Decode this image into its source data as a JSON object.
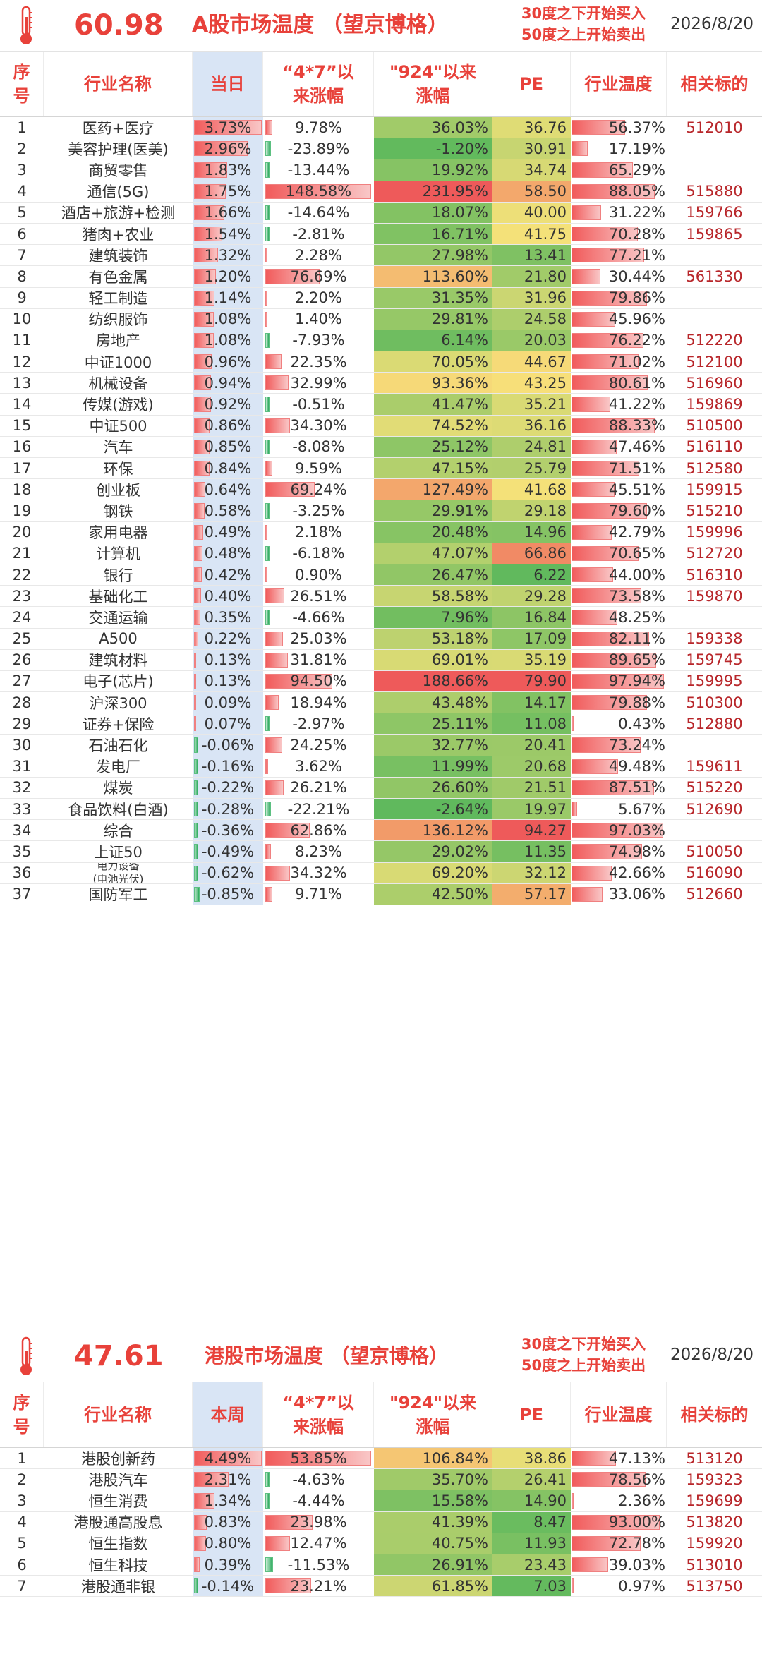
{
  "a_share": {
    "temperature": "60.98",
    "title": "A股市场温度 （望京博格）",
    "rule_line1": "30度之下开始买入",
    "rule_line2": "50度之上开始卖出",
    "date": "2026/8/20",
    "headers": {
      "no_1": "序",
      "no_2": "号",
      "name": "行业名称",
      "day": "当日",
      "a47_1": "“4*7”以",
      "a47_2": "来涨幅",
      "a924_1": "\"924\"以来",
      "a924_2": "涨幅",
      "pe": "PE",
      "ind": "行业温度",
      "code": "相关标的"
    },
    "rows": [
      {
        "no": "1",
        "name": "医药+医疗",
        "day": "3.73%",
        "a47": "9.78%",
        "a924": "36.03%",
        "pe": "36.76",
        "ind": "56.37%",
        "code": "512010"
      },
      {
        "no": "2",
        "name": "美容护理(医美)",
        "day": "2.96%",
        "a47": "-23.89%",
        "a924": "-1.20%",
        "pe": "30.91",
        "ind": "17.19%",
        "code": ""
      },
      {
        "no": "3",
        "name": "商贸零售",
        "day": "1.83%",
        "a47": "-13.44%",
        "a924": "19.92%",
        "pe": "34.74",
        "ind": "65.29%",
        "code": ""
      },
      {
        "no": "4",
        "name": "通信(5G)",
        "day": "1.75%",
        "a47": "148.58%",
        "a924": "231.95%",
        "pe": "58.50",
        "ind": "88.05%",
        "code": "515880"
      },
      {
        "no": "5",
        "name": "酒店+旅游+检测",
        "day": "1.66%",
        "a47": "-14.64%",
        "a924": "18.07%",
        "pe": "40.00",
        "ind": "31.22%",
        "code": "159766"
      },
      {
        "no": "6",
        "name": "猪肉+农业",
        "day": "1.54%",
        "a47": "-2.81%",
        "a924": "16.71%",
        "pe": "41.75",
        "ind": "70.28%",
        "code": "159865"
      },
      {
        "no": "7",
        "name": "建筑装饰",
        "day": "1.32%",
        "a47": "2.28%",
        "a924": "27.98%",
        "pe": "13.41",
        "ind": "77.21%",
        "code": ""
      },
      {
        "no": "8",
        "name": "有色金属",
        "day": "1.20%",
        "a47": "76.69%",
        "a924": "113.60%",
        "pe": "21.80",
        "ind": "30.44%",
        "code": "561330"
      },
      {
        "no": "9",
        "name": "轻工制造",
        "day": "1.14%",
        "a47": "2.20%",
        "a924": "31.35%",
        "pe": "31.96",
        "ind": "79.86%",
        "code": ""
      },
      {
        "no": "10",
        "name": "纺织服饰",
        "day": "1.08%",
        "a47": "1.40%",
        "a924": "29.81%",
        "pe": "24.58",
        "ind": "45.96%",
        "code": ""
      },
      {
        "no": "11",
        "name": "房地产",
        "day": "1.08%",
        "a47": "-7.93%",
        "a924": "6.14%",
        "pe": "20.03",
        "ind": "76.22%",
        "code": "512220"
      },
      {
        "no": "12",
        "name": "中证1000",
        "day": "0.96%",
        "a47": "22.35%",
        "a924": "70.05%",
        "pe": "44.67",
        "ind": "71.02%",
        "code": "512100"
      },
      {
        "no": "13",
        "name": "机械设备",
        "day": "0.94%",
        "a47": "32.99%",
        "a924": "93.36%",
        "pe": "43.25",
        "ind": "80.61%",
        "code": "516960"
      },
      {
        "no": "14",
        "name": "传媒(游戏)",
        "day": "0.92%",
        "a47": "-0.51%",
        "a924": "41.47%",
        "pe": "35.21",
        "ind": "41.22%",
        "code": "159869"
      },
      {
        "no": "15",
        "name": "中证500",
        "day": "0.86%",
        "a47": "34.30%",
        "a924": "74.52%",
        "pe": "36.16",
        "ind": "88.33%",
        "code": "510500"
      },
      {
        "no": "16",
        "name": "汽车",
        "day": "0.85%",
        "a47": "-8.08%",
        "a924": "25.12%",
        "pe": "24.81",
        "ind": "47.46%",
        "code": "516110"
      },
      {
        "no": "17",
        "name": "环保",
        "day": "0.84%",
        "a47": "9.59%",
        "a924": "47.15%",
        "pe": "25.79",
        "ind": "71.51%",
        "code": "512580"
      },
      {
        "no": "18",
        "name": "创业板",
        "day": "0.64%",
        "a47": "69.24%",
        "a924": "127.49%",
        "pe": "41.68",
        "ind": "45.51%",
        "code": "159915"
      },
      {
        "no": "19",
        "name": "钢铁",
        "day": "0.58%",
        "a47": "-3.25%",
        "a924": "29.91%",
        "pe": "29.18",
        "ind": "79.60%",
        "code": "515210"
      },
      {
        "no": "20",
        "name": "家用电器",
        "day": "0.49%",
        "a47": "2.18%",
        "a924": "20.48%",
        "pe": "14.96",
        "ind": "42.79%",
        "code": "159996"
      },
      {
        "no": "21",
        "name": "计算机",
        "day": "0.48%",
        "a47": "-6.18%",
        "a924": "47.07%",
        "pe": "66.86",
        "ind": "70.65%",
        "code": "512720"
      },
      {
        "no": "22",
        "name": "银行",
        "day": "0.42%",
        "a47": "0.90%",
        "a924": "26.47%",
        "pe": "6.22",
        "ind": "44.00%",
        "code": "516310"
      },
      {
        "no": "23",
        "name": "基础化工",
        "day": "0.40%",
        "a47": "26.51%",
        "a924": "58.58%",
        "pe": "29.28",
        "ind": "73.58%",
        "code": "159870"
      },
      {
        "no": "24",
        "name": "交通运输",
        "day": "0.35%",
        "a47": "-4.66%",
        "a924": "7.96%",
        "pe": "16.84",
        "ind": "48.25%",
        "code": ""
      },
      {
        "no": "25",
        "name": "A500",
        "day": "0.22%",
        "a47": "25.03%",
        "a924": "53.18%",
        "pe": "17.09",
        "ind": "82.11%",
        "code": "159338"
      },
      {
        "no": "26",
        "name": "建筑材料",
        "day": "0.13%",
        "a47": "31.81%",
        "a924": "69.01%",
        "pe": "35.19",
        "ind": "89.65%",
        "code": "159745"
      },
      {
        "no": "27",
        "name": "电子(芯片)",
        "day": "0.13%",
        "a47": "94.50%",
        "a924": "188.66%",
        "pe": "79.90",
        "ind": "97.94%",
        "code": "159995"
      },
      {
        "no": "28",
        "name": "沪深300",
        "day": "0.09%",
        "a47": "18.94%",
        "a924": "43.48%",
        "pe": "14.17",
        "ind": "79.88%",
        "code": "510300"
      },
      {
        "no": "29",
        "name": "证券+保险",
        "day": "0.07%",
        "a47": "-2.97%",
        "a924": "25.11%",
        "pe": "11.08",
        "ind": "0.43%",
        "code": "512880"
      },
      {
        "no": "30",
        "name": "石油石化",
        "day": "-0.06%",
        "a47": "24.25%",
        "a924": "32.77%",
        "pe": "20.41",
        "ind": "73.24%",
        "code": ""
      },
      {
        "no": "31",
        "name": "发电厂",
        "day": "-0.16%",
        "a47": "3.62%",
        "a924": "11.99%",
        "pe": "20.68",
        "ind": "49.48%",
        "code": "159611"
      },
      {
        "no": "32",
        "name": "煤炭",
        "day": "-0.22%",
        "a47": "26.21%",
        "a924": "26.60%",
        "pe": "21.51",
        "ind": "87.51%",
        "code": "515220"
      },
      {
        "no": "33",
        "name": "食品饮料(白酒)",
        "day": "-0.28%",
        "a47": "-22.21%",
        "a924": "-2.64%",
        "pe": "19.97",
        "ind": "5.67%",
        "code": "512690"
      },
      {
        "no": "34",
        "name": "综合",
        "day": "-0.36%",
        "a47": "62.86%",
        "a924": "136.12%",
        "pe": "94.27",
        "ind": "97.03%",
        "code": ""
      },
      {
        "no": "35",
        "name": "上证50",
        "day": "-0.49%",
        "a47": "8.23%",
        "a924": "29.02%",
        "pe": "11.35",
        "ind": "74.98%",
        "code": "510050"
      },
      {
        "no": "36",
        "name": "电力设备",
        "name2": "(电池光伏)",
        "day": "-0.62%",
        "a47": "34.32%",
        "a924": "69.20%",
        "pe": "32.12",
        "ind": "42.66%",
        "code": "516090"
      },
      {
        "no": "37",
        "name": "国防军工",
        "day": "-0.85%",
        "a47": "9.71%",
        "a924": "42.50%",
        "pe": "57.17",
        "ind": "33.06%",
        "code": "512660"
      }
    ]
  },
  "hk_share": {
    "temperature": "47.61",
    "title": "港股市场温度 （望京博格）",
    "rule_line1": "30度之下开始买入",
    "rule_line2": "50度之上开始卖出",
    "date": "2026/8/20",
    "headers": {
      "no_1": "序",
      "no_2": "号",
      "name": "行业名称",
      "day": "本周",
      "a47_1": "“4*7”以",
      "a47_2": "来涨幅",
      "a924_1": "\"924\"以来",
      "a924_2": "涨幅",
      "pe": "PE",
      "ind": "行业温度",
      "code": "相关标的"
    },
    "rows": [
      {
        "no": "1",
        "name": "港股创新药",
        "day": "4.49%",
        "a47": "53.85%",
        "a924": "106.84%",
        "pe": "38.86",
        "ind": "47.13%",
        "code": "513120"
      },
      {
        "no": "2",
        "name": "港股汽车",
        "day": "2.31%",
        "a47": "-4.63%",
        "a924": "35.70%",
        "pe": "26.41",
        "ind": "78.56%",
        "code": "159323"
      },
      {
        "no": "3",
        "name": "恒生消费",
        "day": "1.34%",
        "a47": "-4.44%",
        "a924": "15.58%",
        "pe": "14.90",
        "ind": "2.36%",
        "code": "159699"
      },
      {
        "no": "4",
        "name": "港股通高股息",
        "day": "0.83%",
        "a47": "23.98%",
        "a924": "41.39%",
        "pe": "8.47",
        "ind": "93.00%",
        "code": "513820"
      },
      {
        "no": "5",
        "name": "恒生指数",
        "day": "0.80%",
        "a47": "12.47%",
        "a924": "40.75%",
        "pe": "11.93",
        "ind": "72.78%",
        "code": "159920"
      },
      {
        "no": "6",
        "name": "恒生科技",
        "day": "0.39%",
        "a47": "-11.53%",
        "a924": "26.91%",
        "pe": "23.43",
        "ind": "39.03%",
        "code": "513010"
      },
      {
        "no": "7",
        "name": "港股通非银",
        "day": "-0.14%",
        "a47": "23.21%",
        "a924": "61.85%",
        "pe": "7.03",
        "ind": "0.97%",
        "code": "513750"
      }
    ]
  },
  "colors": {
    "accent": "#e8413a",
    "code": "#b8262a",
    "day_column_bg": "#d9e5f5",
    "bar_pos": "#f15b5b",
    "bar_neg": "#28a85a",
    "heat_low": "#5cb85c",
    "heat_mid": "#f7e27a",
    "heat_high": "#ee5a5a"
  },
  "icons": {
    "thermometer": "thermometer-icon"
  }
}
